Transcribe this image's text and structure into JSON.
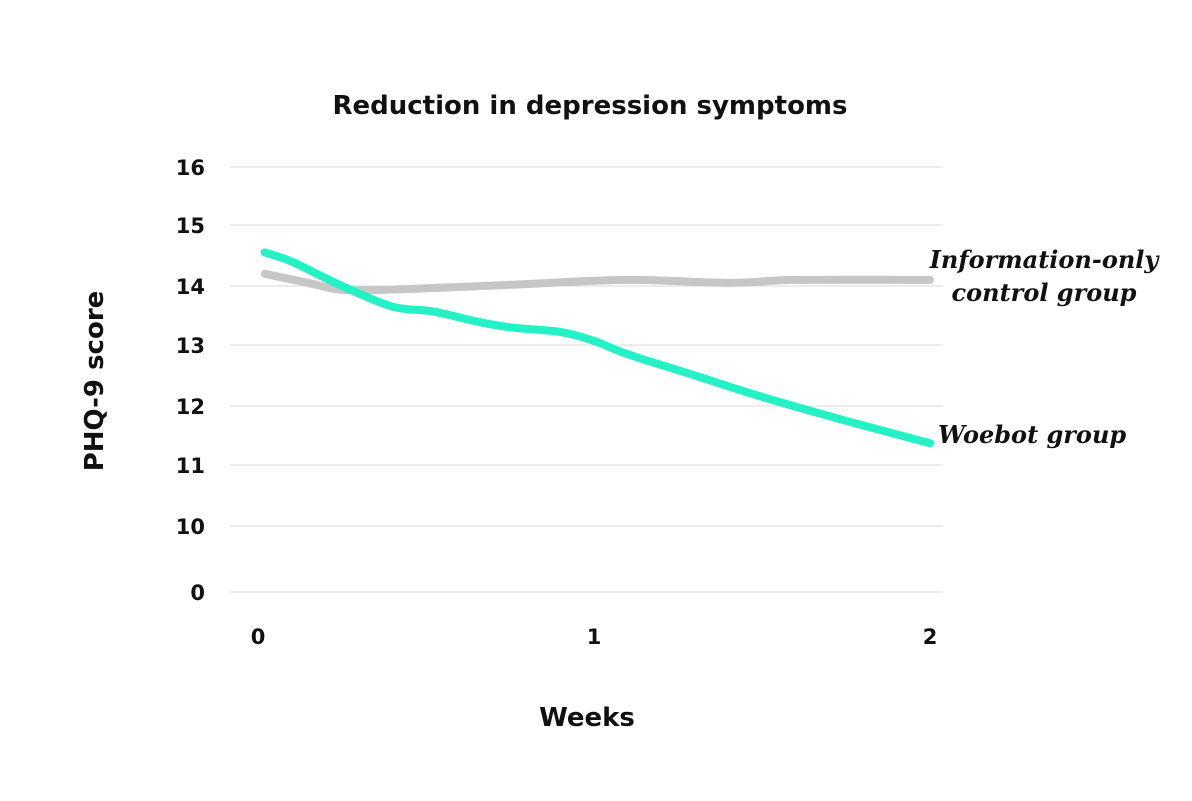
{
  "chart_data": {
    "type": "line",
    "title": "Reduction in depression symptoms",
    "xlabel": "Weeks",
    "ylabel": "PHQ-9 score",
    "x_ticks": [
      "0",
      "1",
      "2"
    ],
    "y_ticks": [
      "0",
      "10",
      "11",
      "12",
      "13",
      "14",
      "15",
      "16"
    ],
    "y_axis_note": "broken axis: jumps from 0 to 10",
    "xlim": [
      0,
      2
    ],
    "grid": true,
    "legend": "direct labels at right end of lines",
    "series": [
      {
        "name": "Information-only control group",
        "color": "#c6c6c6",
        "x": [
          0.02,
          0.15,
          0.26,
          0.45,
          0.75,
          1.1,
          1.4,
          1.6,
          2.0
        ],
        "y": [
          14.2,
          14.05,
          13.93,
          13.95,
          14.02,
          14.1,
          14.05,
          14.1,
          14.1
        ]
      },
      {
        "name": "Woebot group",
        "color": "#24f1c5",
        "x": [
          0.02,
          0.1,
          0.25,
          0.4,
          0.52,
          0.65,
          0.75,
          0.9,
          1.0,
          1.1,
          1.3,
          1.5,
          1.75,
          2.0
        ],
        "y": [
          14.55,
          14.4,
          14.0,
          13.65,
          13.57,
          13.4,
          13.3,
          13.22,
          13.07,
          12.85,
          12.5,
          12.15,
          11.75,
          11.37
        ]
      }
    ]
  }
}
